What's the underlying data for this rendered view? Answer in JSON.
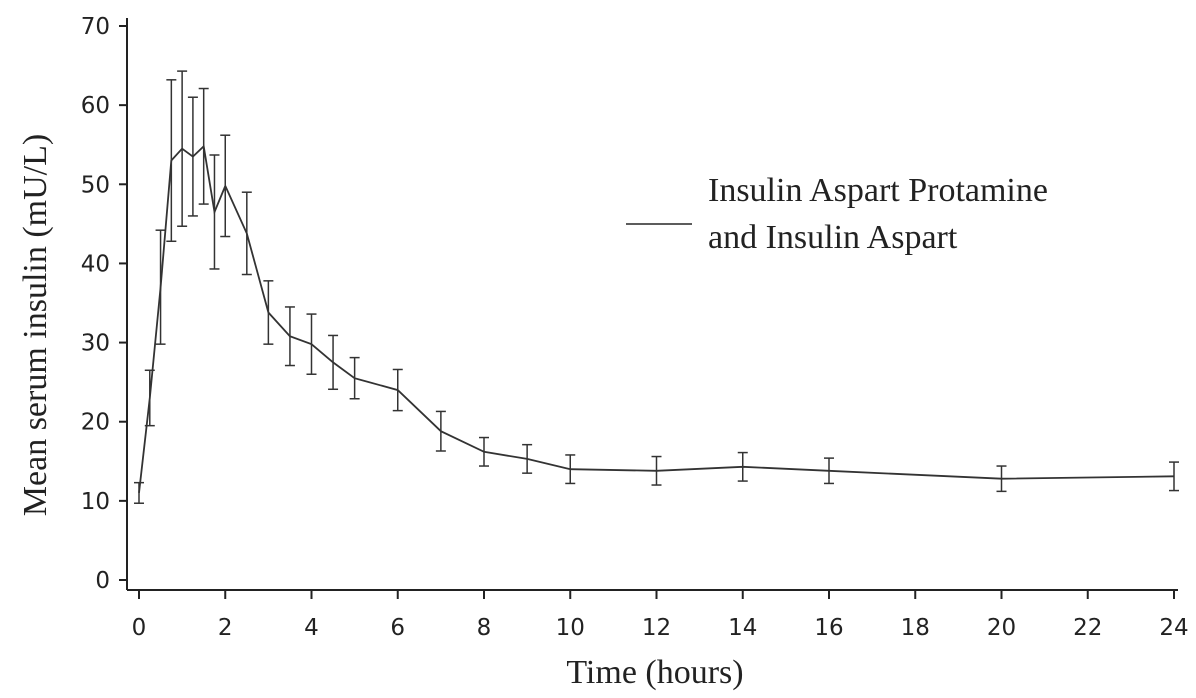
{
  "chart_data": {
    "type": "line",
    "title": "",
    "xlabel": "Time (hours)",
    "ylabel": "Mean serum insulin (mU/L)",
    "xlim": [
      0,
      24
    ],
    "ylim": [
      0,
      70
    ],
    "x_ticks": [
      0,
      2,
      4,
      6,
      8,
      10,
      12,
      14,
      16,
      18,
      20,
      22,
      24
    ],
    "y_ticks": [
      0,
      10,
      20,
      30,
      40,
      50,
      60,
      70
    ],
    "grid": false,
    "legend_position": "right",
    "series": [
      {
        "name": "Insulin Aspart Protamine and Insulin Aspart",
        "x": [
          0,
          0.25,
          0.5,
          0.75,
          1,
          1.25,
          1.5,
          1.75,
          2,
          2.5,
          3,
          3.5,
          4,
          4.5,
          5,
          6,
          7,
          8,
          9,
          10,
          12,
          14,
          16,
          20,
          24
        ],
        "y": [
          11,
          23,
          37,
          53,
          54.5,
          53.5,
          54.8,
          46.5,
          49.8,
          43.8,
          33.8,
          30.8,
          29.8,
          27.5,
          25.5,
          24,
          18.8,
          16.2,
          15.3,
          14,
          13.8,
          14.3,
          13.8,
          12.8,
          13.1
        ],
        "error": [
          1.3,
          3.5,
          7.2,
          10.2,
          9.8,
          7.5,
          7.3,
          7.2,
          6.4,
          5.2,
          4,
          3.7,
          3.8,
          3.4,
          2.6,
          2.6,
          2.5,
          1.8,
          1.8,
          1.8,
          1.8,
          1.8,
          1.6,
          1.6,
          1.8
        ]
      }
    ]
  }
}
